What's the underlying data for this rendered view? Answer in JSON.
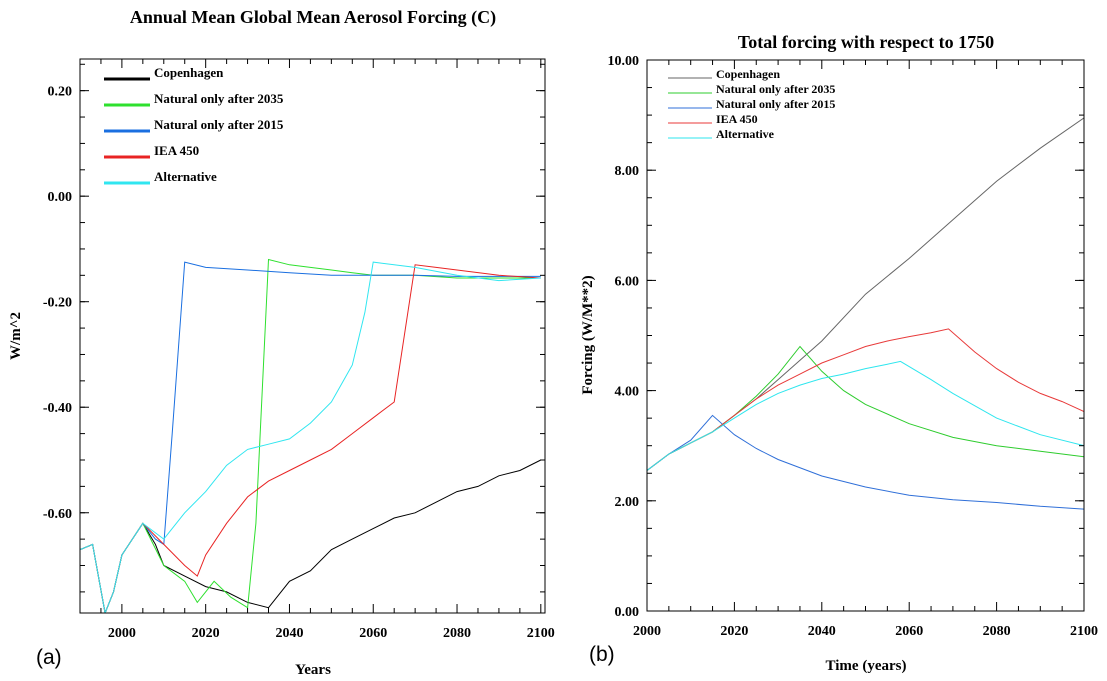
{
  "panel_labels": {
    "a": "(a)",
    "b": "(b)"
  },
  "chart_data": [
    {
      "type": "line",
      "title": "Annual Mean Global Mean Aerosol Forcing (C)",
      "xlabel": "Years",
      "ylabel": "W/m^2",
      "xlim": [
        1990,
        2101
      ],
      "ylim": [
        -0.79,
        0.26
      ],
      "xticks": [
        2000,
        2020,
        2040,
        2060,
        2080,
        2100
      ],
      "yticks": [
        0.2,
        0.0,
        -0.2,
        -0.4,
        -0.6
      ],
      "ytick_labels": [
        "0.20",
        "0.00",
        "-0.20",
        "-0.40",
        "-0.60"
      ],
      "grid": false,
      "legend_position": "top-left",
      "series": [
        {
          "name": "Copenhagen",
          "color": "#000000",
          "x": [
            1990,
            1993,
            1996,
            1998,
            2000,
            2005,
            2008,
            2010,
            2015,
            2020,
            2025,
            2030,
            2035,
            2040,
            2045,
            2050,
            2055,
            2060,
            2065,
            2070,
            2075,
            2080,
            2085,
            2090,
            2095,
            2100
          ],
          "y": [
            -0.67,
            -0.66,
            -0.79,
            -0.75,
            -0.68,
            -0.62,
            -0.66,
            -0.7,
            -0.72,
            -0.74,
            -0.75,
            -0.77,
            -0.78,
            -0.73,
            -0.71,
            -0.67,
            -0.65,
            -0.63,
            -0.61,
            -0.6,
            -0.58,
            -0.56,
            -0.55,
            -0.53,
            -0.52,
            -0.5
          ]
        },
        {
          "name": "Natural only  after 2035",
          "color": "#2ee02e",
          "x": [
            1990,
            1993,
            1996,
            1998,
            2000,
            2005,
            2010,
            2015,
            2018,
            2022,
            2026,
            2030,
            2032,
            2035,
            2040,
            2045,
            2050,
            2055,
            2060,
            2065,
            2070,
            2080,
            2090,
            2100
          ],
          "y": [
            -0.67,
            -0.66,
            -0.79,
            -0.75,
            -0.68,
            -0.62,
            -0.7,
            -0.73,
            -0.77,
            -0.73,
            -0.76,
            -0.78,
            -0.62,
            -0.12,
            -0.13,
            -0.135,
            -0.14,
            -0.145,
            -0.15,
            -0.15,
            -0.15,
            -0.155,
            -0.155,
            -0.155
          ]
        },
        {
          "name": "Natural only  after 2015",
          "color": "#1a6fe0",
          "x": [
            1990,
            1993,
            1996,
            1998,
            2000,
            2005,
            2008,
            2010,
            2012,
            2015,
            2020,
            2030,
            2040,
            2050,
            2060,
            2070,
            2080,
            2090,
            2100
          ],
          "y": [
            -0.67,
            -0.66,
            -0.79,
            -0.75,
            -0.68,
            -0.62,
            -0.65,
            -0.66,
            -0.45,
            -0.125,
            -0.135,
            -0.14,
            -0.145,
            -0.15,
            -0.15,
            -0.15,
            -0.152,
            -0.152,
            -0.152
          ]
        },
        {
          "name": "IEA 450",
          "color": "#e82424",
          "x": [
            1990,
            1993,
            1996,
            1998,
            2000,
            2005,
            2010,
            2015,
            2018,
            2020,
            2025,
            2030,
            2035,
            2040,
            2045,
            2050,
            2055,
            2060,
            2065,
            2070,
            2075,
            2080,
            2090,
            2100
          ],
          "y": [
            -0.67,
            -0.66,
            -0.79,
            -0.75,
            -0.68,
            -0.62,
            -0.66,
            -0.7,
            -0.72,
            -0.68,
            -0.62,
            -0.57,
            -0.54,
            -0.52,
            -0.5,
            -0.48,
            -0.45,
            -0.42,
            -0.39,
            -0.13,
            -0.135,
            -0.14,
            -0.15,
            -0.155
          ]
        },
        {
          "name": "Alternative",
          "color": "#30e6f0",
          "x": [
            1990,
            1993,
            1996,
            1998,
            2000,
            2005,
            2010,
            2015,
            2020,
            2025,
            2030,
            2035,
            2040,
            2045,
            2050,
            2055,
            2058,
            2060,
            2070,
            2080,
            2090,
            2100
          ],
          "y": [
            -0.67,
            -0.66,
            -0.79,
            -0.75,
            -0.68,
            -0.62,
            -0.65,
            -0.6,
            -0.56,
            -0.51,
            -0.48,
            -0.47,
            -0.46,
            -0.43,
            -0.39,
            -0.32,
            -0.22,
            -0.125,
            -0.135,
            -0.15,
            -0.16,
            -0.155
          ]
        }
      ]
    },
    {
      "type": "line",
      "title": "Total forcing with respect to 1750",
      "xlabel": "Time (years)",
      "ylabel": "Forcing (W/M**2)",
      "xlim": [
        2000,
        2100
      ],
      "ylim": [
        0,
        10
      ],
      "xticks": [
        2000,
        2020,
        2040,
        2060,
        2080,
        2100
      ],
      "yticks": [
        0,
        2,
        4,
        6,
        8,
        10
      ],
      "ytick_labels": [
        "0.00",
        "2.00",
        "4.00",
        "6.00",
        "8.00",
        "10.00"
      ],
      "grid": false,
      "legend_position": "top-left",
      "series": [
        {
          "name": "Copenhagen",
          "color": "#666666",
          "x": [
            2000,
            2005,
            2010,
            2015,
            2020,
            2025,
            2030,
            2035,
            2040,
            2050,
            2060,
            2070,
            2080,
            2090,
            2100
          ],
          "y": [
            2.55,
            2.85,
            3.05,
            3.25,
            3.55,
            3.85,
            4.2,
            4.55,
            4.9,
            5.75,
            6.4,
            7.1,
            7.8,
            8.4,
            8.95
          ]
        },
        {
          "name": "Natural only  after 2035",
          "color": "#2ecc2e",
          "x": [
            2000,
            2005,
            2010,
            2015,
            2020,
            2025,
            2030,
            2035,
            2040,
            2045,
            2050,
            2060,
            2070,
            2080,
            2090,
            2100
          ],
          "y": [
            2.55,
            2.85,
            3.05,
            3.25,
            3.55,
            3.9,
            4.3,
            4.8,
            4.35,
            4.0,
            3.75,
            3.4,
            3.15,
            3.0,
            2.9,
            2.8
          ]
        },
        {
          "name": "Natural only  after 2015",
          "color": "#2f6fd8",
          "x": [
            2000,
            2005,
            2010,
            2015,
            2020,
            2025,
            2030,
            2040,
            2050,
            2060,
            2070,
            2080,
            2090,
            2100
          ],
          "y": [
            2.55,
            2.85,
            3.1,
            3.55,
            3.2,
            2.95,
            2.75,
            2.45,
            2.25,
            2.1,
            2.02,
            1.97,
            1.9,
            1.85
          ]
        },
        {
          "name": "IEA 450",
          "color": "#e83a3a",
          "x": [
            2000,
            2005,
            2010,
            2015,
            2020,
            2025,
            2030,
            2035,
            2040,
            2045,
            2050,
            2055,
            2060,
            2065,
            2069,
            2075,
            2080,
            2085,
            2090,
            2095,
            2100
          ],
          "y": [
            2.55,
            2.85,
            3.05,
            3.25,
            3.55,
            3.85,
            4.1,
            4.3,
            4.5,
            4.65,
            4.8,
            4.9,
            4.98,
            5.05,
            5.12,
            4.7,
            4.4,
            4.15,
            3.95,
            3.8,
            3.62
          ]
        },
        {
          "name": "Alternative",
          "color": "#2ee6ee",
          "x": [
            2000,
            2005,
            2010,
            2015,
            2020,
            2025,
            2030,
            2035,
            2040,
            2045,
            2050,
            2055,
            2058,
            2065,
            2070,
            2080,
            2090,
            2100
          ],
          "y": [
            2.55,
            2.85,
            3.05,
            3.25,
            3.5,
            3.75,
            3.95,
            4.1,
            4.22,
            4.3,
            4.4,
            4.48,
            4.53,
            4.2,
            3.95,
            3.5,
            3.2,
            3.0
          ]
        }
      ]
    }
  ]
}
